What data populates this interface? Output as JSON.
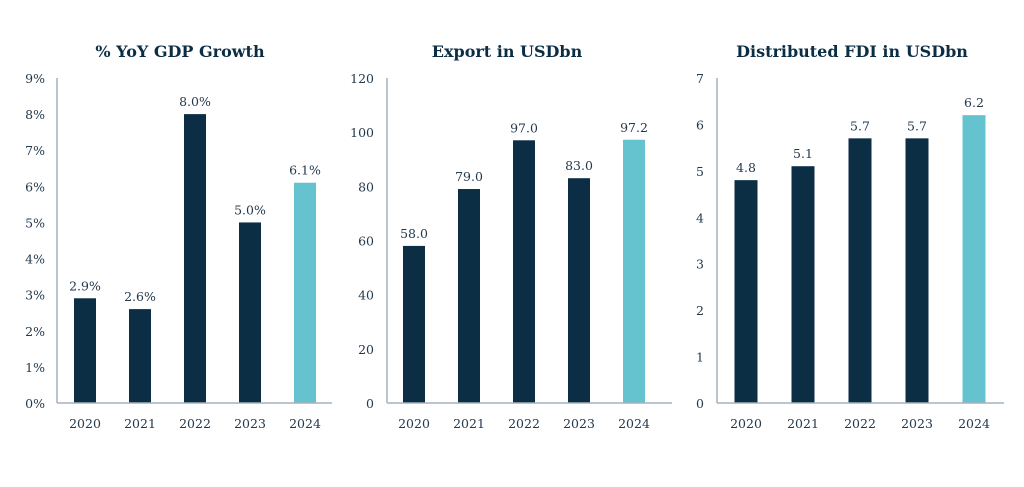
{
  "colors": {
    "primary": "#0b2e45",
    "highlight": "#64c3cf",
    "axis": "#a5b2bd",
    "text": "#23394d"
  },
  "chart_data": [
    {
      "type": "bar",
      "title": "% YoY GDP Growth",
      "categories": [
        "2020",
        "2021",
        "2022",
        "2023",
        "2024"
      ],
      "values": [
        2.9,
        2.6,
        8.0,
        5.0,
        6.1
      ],
      "data_labels": [
        "2.9%",
        "2.6%",
        "8.0%",
        "5.0%",
        "6.1%"
      ],
      "highlight_index": 4,
      "ylim": [
        0,
        9
      ],
      "yticks": [
        0,
        1,
        2,
        3,
        4,
        5,
        6,
        7,
        8,
        9
      ],
      "ytick_labels": [
        "0%",
        "1%",
        "2%",
        "3%",
        "4%",
        "5%",
        "6%",
        "7%",
        "8%",
        "9%"
      ],
      "xlabel": "",
      "ylabel": "",
      "grid": false
    },
    {
      "type": "bar",
      "title": "Export in USDbn",
      "categories": [
        "2020",
        "2021",
        "2022",
        "2023",
        "2024"
      ],
      "values": [
        58.0,
        79.0,
        97.0,
        83.0,
        97.2
      ],
      "data_labels": [
        "58.0",
        "79.0",
        "97.0",
        "83.0",
        "97.2"
      ],
      "highlight_index": 4,
      "ylim": [
        0,
        120
      ],
      "yticks": [
        0,
        20,
        40,
        60,
        80,
        100,
        120
      ],
      "ytick_labels": [
        "0",
        "20",
        "40",
        "60",
        "80",
        "100",
        "120"
      ],
      "xlabel": "",
      "ylabel": "",
      "grid": false
    },
    {
      "type": "bar",
      "title": "Distributed FDI in USDbn",
      "categories": [
        "2020",
        "2021",
        "2022",
        "2023",
        "2024"
      ],
      "values": [
        4.8,
        5.1,
        5.7,
        5.7,
        6.2
      ],
      "data_labels": [
        "4.8",
        "5.1",
        "5.7",
        "5.7",
        "6.2"
      ],
      "highlight_index": 4,
      "ylim": [
        0,
        7
      ],
      "yticks": [
        0,
        1,
        2,
        3,
        4,
        5,
        6,
        7
      ],
      "ytick_labels": [
        "0",
        "1",
        "2",
        "3",
        "4",
        "5",
        "6",
        "7"
      ],
      "xlabel": "",
      "ylabel": "",
      "grid": false
    }
  ]
}
